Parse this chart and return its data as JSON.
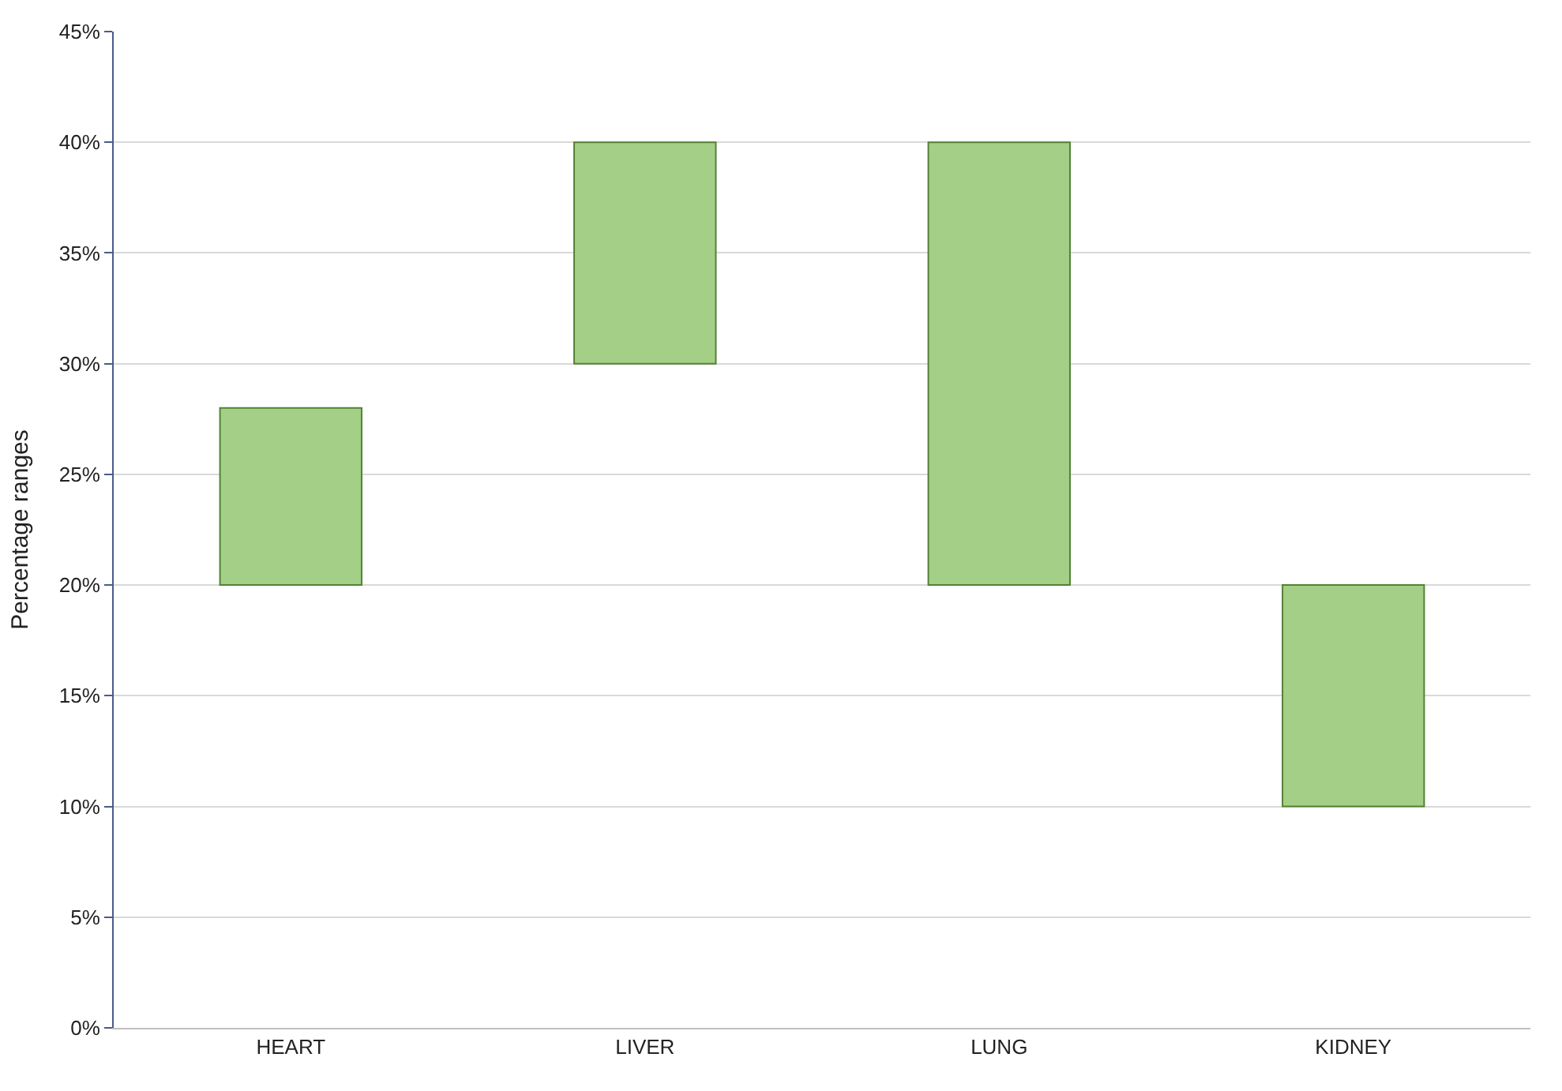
{
  "chart_data": {
    "type": "bar",
    "ylabel": "Percentage ranges",
    "categories": [
      "HEART",
      "LIVER",
      "LUNG",
      "KIDNEY"
    ],
    "values": [
      8,
      10,
      20,
      10
    ],
    "base": [
      20,
      30,
      20,
      10
    ],
    "color": "#a3cf86",
    "ylim": [
      0,
      45
    ],
    "yticks": [
      {
        "value": 0,
        "label": "0%"
      },
      {
        "value": 5,
        "label": "5%"
      },
      {
        "value": 10,
        "label": "10%"
      },
      {
        "value": 15,
        "label": "15%"
      },
      {
        "value": 20,
        "label": "20%"
      },
      {
        "value": 25,
        "label": "25%"
      },
      {
        "value": 30,
        "label": "30%"
      },
      {
        "value": 35,
        "label": "35%"
      },
      {
        "value": 40,
        "label": "40%"
      },
      {
        "value": 45,
        "label": "45%"
      }
    ],
    "grid": "y"
  }
}
